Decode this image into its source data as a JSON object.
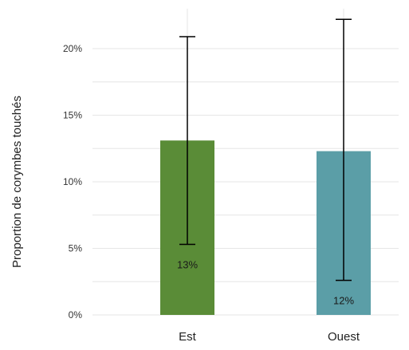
{
  "chart_data": {
    "type": "bar",
    "title": "",
    "xlabel": "",
    "ylabel": "Proportion de corymbes touchés",
    "ylim": [
      0,
      0.23
    ],
    "yticks": [
      {
        "value": 0,
        "label": "0%"
      },
      {
        "value": 0.05,
        "label": "5%"
      },
      {
        "value": 0.1,
        "label": "10%"
      },
      {
        "value": 0.15,
        "label": "15%"
      },
      {
        "value": 0.2,
        "label": "20%"
      }
    ],
    "grid": true,
    "categories": [
      "Est",
      "Ouest"
    ],
    "values": [
      0.131,
      0.123
    ],
    "data_labels": [
      "13%",
      "12%"
    ],
    "errors": [
      {
        "low": 0.053,
        "high": 0.209
      },
      {
        "low": 0.026,
        "high": 0.222
      }
    ],
    "colors": [
      "#5a8c37",
      "#5b9ea7"
    ],
    "grid_color": "#e6e6e6",
    "error_bar_color": "#000000"
  }
}
